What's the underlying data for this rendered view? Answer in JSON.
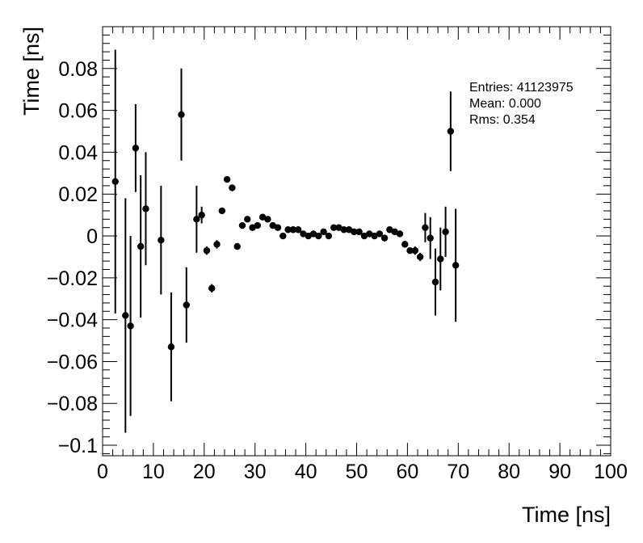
{
  "chart_data": {
    "type": "scatter",
    "title": "",
    "xlabel": "Time [ns]",
    "ylabel": "Time [ns]",
    "xlim": [
      0,
      100
    ],
    "ylim": [
      -0.105,
      0.1
    ],
    "x_ticks": [
      {
        "value": 0,
        "label": "0"
      },
      {
        "value": 10,
        "label": "10"
      },
      {
        "value": 20,
        "label": "20"
      },
      {
        "value": 30,
        "label": "30"
      },
      {
        "value": 40,
        "label": "40"
      },
      {
        "value": 50,
        "label": "50"
      },
      {
        "value": 60,
        "label": "60"
      },
      {
        "value": 70,
        "label": "70"
      },
      {
        "value": 80,
        "label": "80"
      },
      {
        "value": 90,
        "label": "90"
      },
      {
        "value": 100,
        "label": "100"
      }
    ],
    "y_ticks": [
      {
        "value": 0.08,
        "label": "0.08"
      },
      {
        "value": 0.06,
        "label": "0.06"
      },
      {
        "value": 0.04,
        "label": "0.04"
      },
      {
        "value": 0.02,
        "label": "0.02"
      },
      {
        "value": 0,
        "label": "0"
      },
      {
        "value": -0.02,
        "label": "−0.02"
      },
      {
        "value": -0.04,
        "label": "−0.04"
      },
      {
        "value": -0.06,
        "label": "−0.06"
      },
      {
        "value": -0.08,
        "label": "−0.08"
      },
      {
        "value": -0.1,
        "label": "−0.1"
      }
    ],
    "grid": false,
    "stats": {
      "entries": "Entries: 41123975",
      "mean": "Mean: 0.000",
      "rms": "Rms: 0.354"
    },
    "points": [
      {
        "x": 2.5,
        "y": 0.026,
        "err": 0.063
      },
      {
        "x": 4.5,
        "y": -0.038,
        "err": 0.056
      },
      {
        "x": 5.5,
        "y": -0.043,
        "err": 0.043
      },
      {
        "x": 6.5,
        "y": 0.042,
        "err": 0.021
      },
      {
        "x": 7.5,
        "y": -0.005,
        "err": 0.034
      },
      {
        "x": 8.5,
        "y": 0.013,
        "err": 0.027
      },
      {
        "x": 11.5,
        "y": -0.002,
        "err": 0.026
      },
      {
        "x": 13.5,
        "y": -0.053,
        "err": 0.026
      },
      {
        "x": 15.5,
        "y": 0.058,
        "err": 0.022
      },
      {
        "x": 16.5,
        "y": -0.033,
        "err": 0.018
      },
      {
        "x": 18.5,
        "y": 0.008,
        "err": 0.016
      },
      {
        "x": 19.5,
        "y": 0.01,
        "err": 0.004
      },
      {
        "x": 20.5,
        "y": -0.007,
        "err": 0.002
      },
      {
        "x": 21.5,
        "y": -0.025,
        "err": 0.002
      },
      {
        "x": 22.5,
        "y": -0.004,
        "err": 0.002
      },
      {
        "x": 23.5,
        "y": 0.012,
        "err": 0.001
      },
      {
        "x": 24.5,
        "y": 0.027,
        "err": 0.001
      },
      {
        "x": 25.5,
        "y": 0.023,
        "err": 0.001
      },
      {
        "x": 26.5,
        "y": -0.005,
        "err": 0.001
      },
      {
        "x": 27.5,
        "y": 0.005,
        "err": 0.001
      },
      {
        "x": 28.5,
        "y": 0.008,
        "err": 0.001
      },
      {
        "x": 29.5,
        "y": 0.004,
        "err": 0.001
      },
      {
        "x": 30.5,
        "y": 0.005,
        "err": 0.001
      },
      {
        "x": 31.5,
        "y": 0.009,
        "err": 0.001
      },
      {
        "x": 32.5,
        "y": 0.008,
        "err": 0.001
      },
      {
        "x": 33.5,
        "y": 0.005,
        "err": 0.001
      },
      {
        "x": 34.5,
        "y": 0.004,
        "err": 0.001
      },
      {
        "x": 35.5,
        "y": 0.0,
        "err": 0.001
      },
      {
        "x": 36.5,
        "y": 0.003,
        "err": 0.001
      },
      {
        "x": 37.5,
        "y": 0.003,
        "err": 0.001
      },
      {
        "x": 38.5,
        "y": 0.003,
        "err": 0.001
      },
      {
        "x": 39.5,
        "y": 0.001,
        "err": 0.001
      },
      {
        "x": 40.5,
        "y": 0.0,
        "err": 0.001
      },
      {
        "x": 41.5,
        "y": 0.001,
        "err": 0.001
      },
      {
        "x": 42.5,
        "y": 0.0,
        "err": 0.001
      },
      {
        "x": 43.5,
        "y": 0.002,
        "err": 0.001
      },
      {
        "x": 44.5,
        "y": 0.0,
        "err": 0.001
      },
      {
        "x": 45.5,
        "y": 0.004,
        "err": 0.001
      },
      {
        "x": 46.5,
        "y": 0.004,
        "err": 0.001
      },
      {
        "x": 47.5,
        "y": 0.003,
        "err": 0.001
      },
      {
        "x": 48.5,
        "y": 0.003,
        "err": 0.001
      },
      {
        "x": 49.5,
        "y": 0.002,
        "err": 0.001
      },
      {
        "x": 50.5,
        "y": 0.002,
        "err": 0.001
      },
      {
        "x": 51.5,
        "y": 0.0,
        "err": 0.001
      },
      {
        "x": 52.5,
        "y": 0.001,
        "err": 0.001
      },
      {
        "x": 53.5,
        "y": 0.0,
        "err": 0.001
      },
      {
        "x": 54.5,
        "y": 0.001,
        "err": 0.001
      },
      {
        "x": 55.5,
        "y": -0.001,
        "err": 0.001
      },
      {
        "x": 56.5,
        "y": 0.003,
        "err": 0.001
      },
      {
        "x": 57.5,
        "y": 0.002,
        "err": 0.001
      },
      {
        "x": 58.5,
        "y": 0.001,
        "err": 0.001
      },
      {
        "x": 59.5,
        "y": -0.004,
        "err": 0.001
      },
      {
        "x": 60.5,
        "y": -0.007,
        "err": 0.001
      },
      {
        "x": 61.5,
        "y": -0.007,
        "err": 0.002
      },
      {
        "x": 62.5,
        "y": -0.01,
        "err": 0.002
      },
      {
        "x": 63.5,
        "y": 0.004,
        "err": 0.007
      },
      {
        "x": 64.5,
        "y": -0.001,
        "err": 0.01
      },
      {
        "x": 65.5,
        "y": -0.022,
        "err": 0.016
      },
      {
        "x": 66.5,
        "y": -0.011,
        "err": 0.015
      },
      {
        "x": 67.5,
        "y": 0.002,
        "err": 0.012
      },
      {
        "x": 68.5,
        "y": 0.05,
        "err": 0.019
      },
      {
        "x": 69.5,
        "y": -0.014,
        "err": 0.027
      }
    ]
  }
}
